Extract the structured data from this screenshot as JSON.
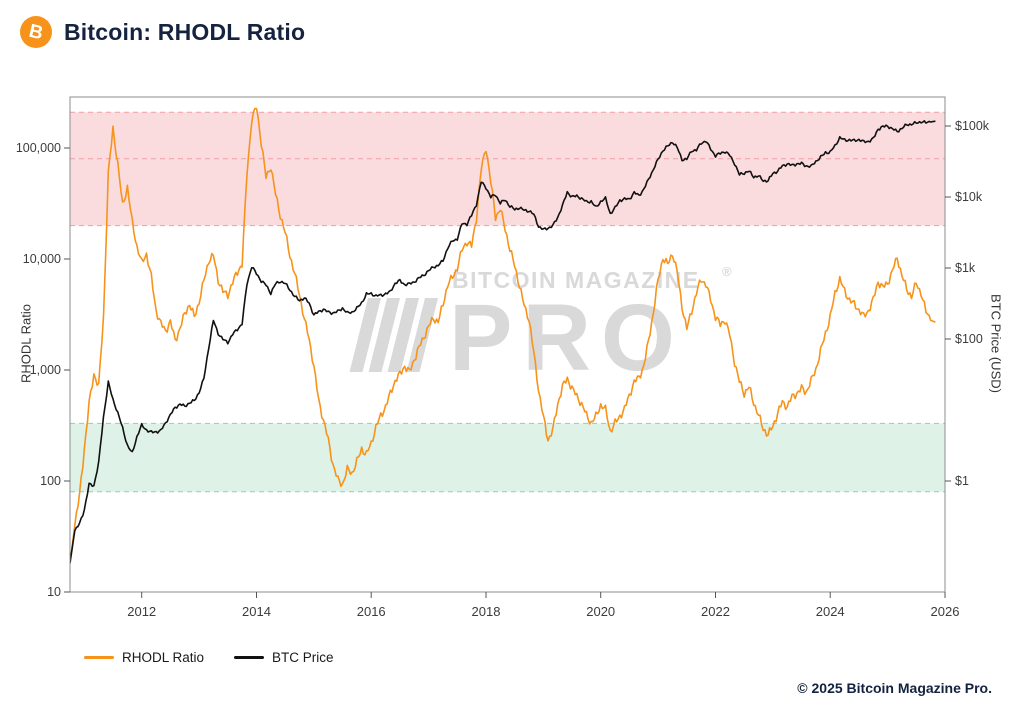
{
  "header": {
    "title": "Bitcoin: RHODL Ratio",
    "logo_glyph": "B"
  },
  "watermark": {
    "line1": "BITCOIN MAGAZINE",
    "line2": "PRO",
    "registered": "®"
  },
  "footer": {
    "copyright": "© 2025 Bitcoin Magazine Pro."
  },
  "chart_data": {
    "type": "line",
    "title": "Bitcoin: RHODL Ratio",
    "grid": false,
    "legend_position": "bottom-left",
    "x_axis": {
      "min": 2010.75,
      "max": 2026,
      "ticks": [
        2012,
        2014,
        2016,
        2018,
        2020,
        2022,
        2024,
        2026
      ]
    },
    "y_left": {
      "label": "RHODL Ratio",
      "scale": "log",
      "min": 10,
      "max": 290000,
      "ticks": [
        {
          "value": 100000,
          "label": "100,000"
        },
        {
          "value": 10000,
          "label": "10,000"
        },
        {
          "value": 1000,
          "label": "1,000"
        },
        {
          "value": 100,
          "label": "100"
        },
        {
          "value": 10,
          "label": "10"
        }
      ]
    },
    "y_right": {
      "label": "BTC Price (USD)",
      "scale": "log",
      "min": 0.03,
      "max": 260000,
      "ticks": [
        {
          "value": 100000,
          "label": "$100k"
        },
        {
          "value": 10000,
          "label": "$10k"
        },
        {
          "value": 1000,
          "label": "$1k"
        },
        {
          "value": 100,
          "label": "$100"
        },
        {
          "value": 1,
          "label": "$1"
        }
      ]
    },
    "bands": [
      {
        "axis": "left",
        "from": 20000,
        "to": 210000,
        "mid_line": 80000,
        "fill": "#fadcdf",
        "edge_color": "#f09da7",
        "edge_style": "dashed"
      },
      {
        "axis": "left",
        "from": 80,
        "to": 330,
        "fill": "#def2e8",
        "edge_color": "#8ed2b0",
        "edge_style": "dashed"
      }
    ],
    "series": [
      {
        "name": "RHODL Ratio",
        "color": "#f7931a",
        "axis": "left",
        "x_start": 2010.75,
        "x_step_months": 1,
        "values": [
          18,
          40,
          75,
          200,
          500,
          900,
          700,
          3000,
          60000,
          150000,
          70000,
          30000,
          45000,
          22000,
          13000,
          9000,
          11000,
          7000,
          3500,
          2600,
          2200,
          2700,
          1900,
          2400,
          3200,
          3800,
          3000,
          4200,
          6500,
          9500,
          10500,
          6500,
          5200,
          4800,
          6000,
          7500,
          9000,
          60000,
          180000,
          230000,
          110000,
          55000,
          70000,
          38000,
          24000,
          17000,
          11000,
          7500,
          4800,
          2800,
          1900,
          1100,
          550,
          350,
          230,
          140,
          105,
          95,
          125,
          115,
          150,
          200,
          175,
          215,
          300,
          390,
          480,
          620,
          780,
          900,
          1100,
          980,
          1250,
          1550,
          1950,
          2500,
          3000,
          2700,
          3800,
          5800,
          7000,
          8500,
          12000,
          14000,
          13000,
          24000,
          65000,
          100000,
          48000,
          24000,
          29000,
          19000,
          12000,
          8500,
          5800,
          3900,
          2900,
          1400,
          650,
          380,
          240,
          290,
          480,
          700,
          850,
          700,
          580,
          480,
          390,
          340,
          390,
          480,
          430,
          280,
          340,
          390,
          440,
          580,
          780,
          880,
          1100,
          1800,
          3200,
          6500,
          10500,
          9000,
          11000,
          7500,
          3800,
          2400,
          3400,
          4800,
          6500,
          6000,
          4400,
          3000,
          2500,
          2800,
          2100,
          1200,
          780,
          600,
          700,
          520,
          400,
          290,
          255,
          310,
          420,
          520,
          460,
          560,
          620,
          700,
          640,
          780,
          1000,
          1500,
          2200,
          3000,
          4800,
          6500,
          5200,
          4400,
          3900,
          3400,
          3000,
          3500,
          4400,
          6200,
          5400,
          6000,
          8000,
          10500,
          7000,
          5200,
          4600,
          6200,
          5000,
          3300,
          2800,
          2700
        ]
      },
      {
        "name": "BTC Price",
        "color": "#111111",
        "axis": "right",
        "x_start": 2010.75,
        "x_step_months": 1,
        "values": [
          0.07,
          0.2,
          0.25,
          0.4,
          0.9,
          0.85,
          1.8,
          8,
          25,
          14,
          9,
          5.5,
          3.2,
          2.5,
          4.2,
          6,
          5.2,
          4.9,
          5,
          5.1,
          6.5,
          8.5,
          11,
          12.2,
          11.2,
          12.4,
          13.5,
          18,
          28,
          75,
          180,
          120,
          100,
          90,
          115,
          135,
          165,
          600,
          1050,
          820,
          650,
          580,
          450,
          600,
          640,
          600,
          500,
          400,
          350,
          370,
          320,
          220,
          245,
          260,
          235,
          232,
          248,
          275,
          230,
          236,
          270,
          330,
          430,
          430,
          400,
          415,
          440,
          465,
          600,
          655,
          590,
          605,
          640,
          710,
          790,
          920,
          1050,
          1080,
          1250,
          1900,
          2450,
          2600,
          4200,
          4100,
          5500,
          8000,
          16500,
          13500,
          9800,
          10800,
          8300,
          9200,
          7300,
          6600,
          7100,
          6600,
          6400,
          5600,
          3800,
          3500,
          3700,
          3950,
          5100,
          7500,
          11800,
          10200,
          10300,
          9400,
          8500,
          8800,
          7200,
          8600,
          9400,
          5800,
          7100,
          9100,
          9300,
          9200,
          11600,
          10600,
          13000,
          17500,
          24000,
          34000,
          46000,
          52000,
          59000,
          49000,
          34000,
          34500,
          45000,
          45000,
          57000,
          62000,
          48000,
          38000,
          40500,
          43500,
          39000,
          30000,
          20500,
          21500,
          23000,
          19500,
          20000,
          16800,
          16700,
          21500,
          23500,
          27500,
          29000,
          27500,
          29500,
          30000,
          27500,
          26500,
          31500,
          36500,
          43000,
          42800,
          52000,
          68000,
          64000,
          64500,
          62000,
          63500,
          59500,
          61500,
          67000,
          90000,
          96000,
          100000,
          92000,
          85000,
          92000,
          103000,
          106000,
          112000,
          116000,
          110000,
          114000,
          117000
        ]
      }
    ]
  }
}
